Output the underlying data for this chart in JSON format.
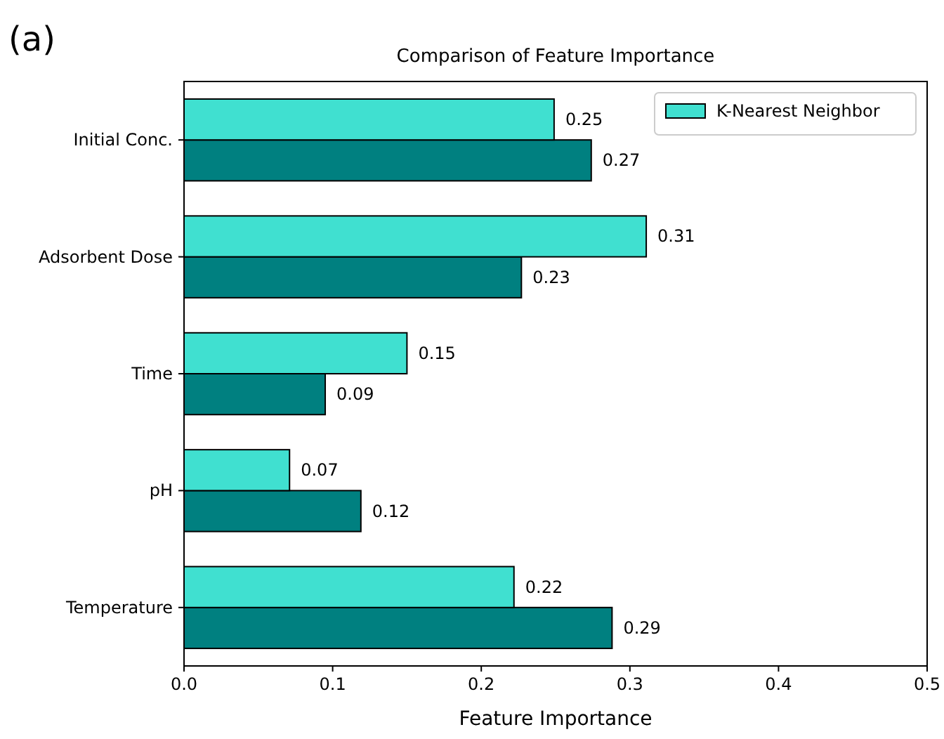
{
  "chart_data": {
    "type": "bar",
    "orientation": "horizontal",
    "title": "Comparison of Feature Importance",
    "xlabel": "Feature Importance",
    "annotations": [
      "(a)"
    ],
    "categories": [
      "Initial Conc.",
      "Adsorbent Dose",
      "Time",
      "pH",
      "Temperature"
    ],
    "series": [
      {
        "color": "#008080",
        "values": [
          0.274,
          0.227,
          0.095,
          0.119,
          0.288
        ],
        "value_labels": [
          "0.27",
          "0.23",
          "0.09",
          "0.12",
          "0.29"
        ]
      },
      {
        "name": "K-Nearest Neighbor",
        "color": "#40e0d0",
        "values": [
          0.249,
          0.311,
          0.15,
          0.071,
          0.222
        ],
        "value_labels": [
          "0.25",
          "0.31",
          "0.15",
          "0.07",
          "0.22"
        ]
      }
    ],
    "xlim": [
      0,
      0.5
    ],
    "xticks": [
      {
        "value": 0,
        "label": "0.0"
      },
      {
        "value": 0.1,
        "label": "0.1"
      },
      {
        "value": 0.2,
        "label": "0.2"
      },
      {
        "value": 0.3,
        "label": "0.3"
      },
      {
        "value": 0.4,
        "label": "0.4"
      },
      {
        "value": 0.5,
        "label": "0.5"
      }
    ],
    "legend": "top right",
    "grid": false
  }
}
